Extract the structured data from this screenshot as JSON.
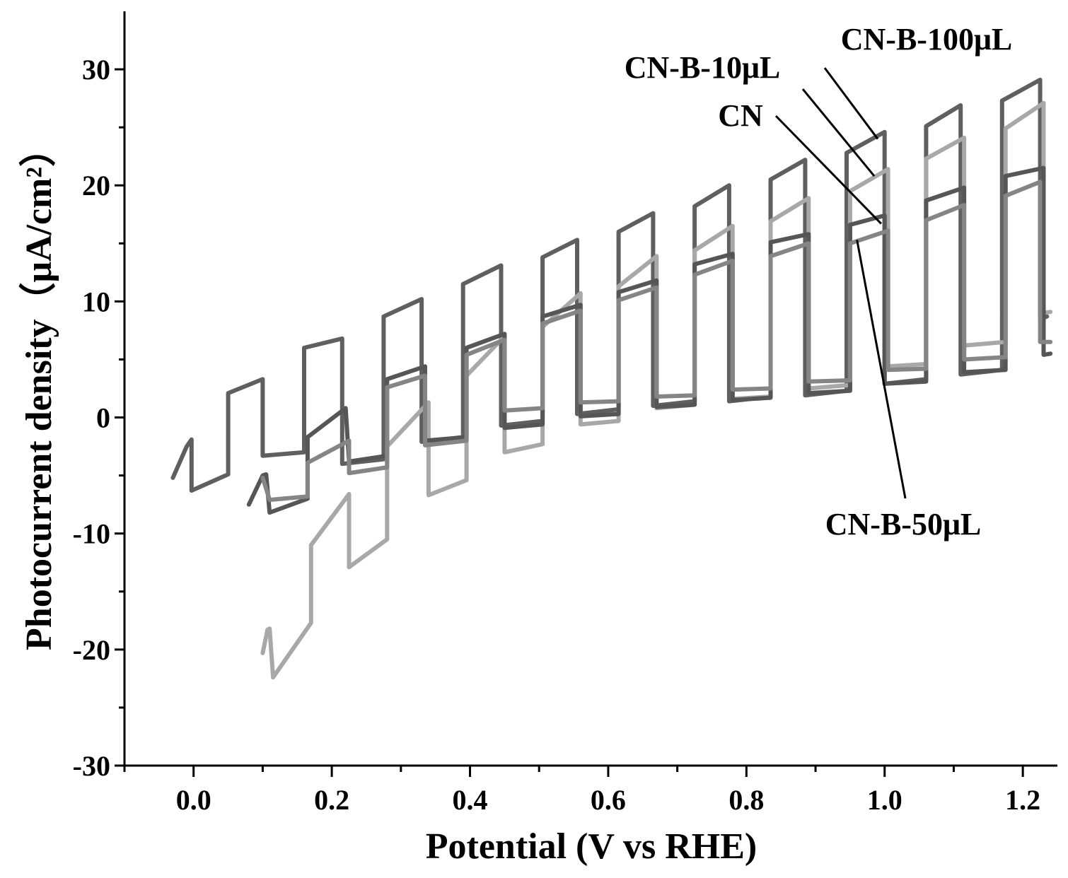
{
  "chart_data": {
    "type": "line",
    "xlabel": "Potential (V vs RHE)",
    "ylabel": "Photocurrent density（μA/cm²）",
    "xlim": [
      -0.1,
      1.25
    ],
    "ylim": [
      -30,
      35
    ],
    "xticks": [
      "0.0",
      "0.2",
      "0.4",
      "0.6",
      "0.8",
      "1.0",
      "1.2"
    ],
    "yticks": [
      "-30",
      "-20",
      "-10",
      "0",
      "10",
      "20",
      "30"
    ],
    "xtick_values": [
      0.0,
      0.2,
      0.4,
      0.6,
      0.8,
      1.0,
      1.2
    ],
    "ytick_values": [
      -30,
      -20,
      -10,
      0,
      10,
      20,
      30
    ],
    "grid": false,
    "legend": "inline labels with leader lines",
    "series": [
      {
        "name": "CN-B-100μL",
        "color": "#5f5f5f",
        "light_on_ends": [
          -0.005,
          0.1,
          0.215,
          0.33,
          0.445,
          0.555,
          0.665,
          0.775,
          0.885,
          1.0,
          1.11,
          1.225
        ],
        "dark_end": 1.235,
        "points": [
          [
            -0.03,
            -5.2
          ],
          [
            -0.01,
            -2.5
          ],
          [
            -0.003,
            -1.9
          ],
          [
            -0.003,
            -6.3
          ],
          [
            0.05,
            -4.9
          ],
          [
            0.05,
            2.1
          ],
          [
            0.1,
            3.3
          ],
          [
            0.1,
            -3.3
          ],
          [
            0.16,
            -3.0
          ],
          [
            0.16,
            6.0
          ],
          [
            0.215,
            6.8
          ],
          [
            0.215,
            -4.0
          ],
          [
            0.275,
            -3.6
          ],
          [
            0.275,
            8.7
          ],
          [
            0.33,
            10.2
          ],
          [
            0.33,
            -2.1
          ],
          [
            0.39,
            -1.7
          ],
          [
            0.39,
            11.5
          ],
          [
            0.445,
            13.1
          ],
          [
            0.445,
            -0.7
          ],
          [
            0.505,
            -0.3
          ],
          [
            0.505,
            13.8
          ],
          [
            0.555,
            15.3
          ],
          [
            0.555,
            0.3
          ],
          [
            0.615,
            0.7
          ],
          [
            0.615,
            16.0
          ],
          [
            0.665,
            17.6
          ],
          [
            0.665,
            1.0
          ],
          [
            0.725,
            1.4
          ],
          [
            0.725,
            18.2
          ],
          [
            0.775,
            20.0
          ],
          [
            0.775,
            1.4
          ],
          [
            0.835,
            1.8
          ],
          [
            0.835,
            20.5
          ],
          [
            0.885,
            22.2
          ],
          [
            0.885,
            1.9
          ],
          [
            0.945,
            2.3
          ],
          [
            0.945,
            22.8
          ],
          [
            1.0,
            24.6
          ],
          [
            1.0,
            2.9
          ],
          [
            1.06,
            3.3
          ],
          [
            1.06,
            25.1
          ],
          [
            1.11,
            26.9
          ],
          [
            1.11,
            3.7
          ],
          [
            1.17,
            4.1
          ],
          [
            1.17,
            27.3
          ],
          [
            1.225,
            29.1
          ],
          [
            1.225,
            8.5
          ],
          [
            1.235,
            8.7
          ]
        ]
      },
      {
        "name": "CN-B-10μL",
        "color": "#a8a8a8",
        "light_on_ends": [
          0.115,
          0.225,
          0.34,
          0.45,
          0.56,
          0.67,
          0.78,
          0.89,
          1.005,
          1.115,
          1.23
        ],
        "dark_end": 1.24,
        "points": [
          [
            0.1,
            -20.3
          ],
          [
            0.107,
            -18.3
          ],
          [
            0.11,
            -18.2
          ],
          [
            0.115,
            -22.4
          ],
          [
            0.17,
            -17.7
          ],
          [
            0.17,
            -11.0
          ],
          [
            0.225,
            -6.6
          ],
          [
            0.225,
            -12.9
          ],
          [
            0.28,
            -10.5
          ],
          [
            0.28,
            -2.5
          ],
          [
            0.34,
            1.3
          ],
          [
            0.34,
            -6.7
          ],
          [
            0.395,
            -5.4
          ],
          [
            0.395,
            3.6
          ],
          [
            0.45,
            7.0
          ],
          [
            0.45,
            -3.0
          ],
          [
            0.505,
            -2.3
          ],
          [
            0.505,
            7.8
          ],
          [
            0.56,
            10.7
          ],
          [
            0.56,
            -0.6
          ],
          [
            0.615,
            -0.3
          ],
          [
            0.615,
            11.3
          ],
          [
            0.67,
            13.9
          ],
          [
            0.67,
            0.8
          ],
          [
            0.725,
            1.1
          ],
          [
            0.725,
            14.4
          ],
          [
            0.78,
            16.5
          ],
          [
            0.78,
            1.6
          ],
          [
            0.835,
            1.8
          ],
          [
            0.835,
            16.9
          ],
          [
            0.89,
            18.9
          ],
          [
            0.89,
            2.5
          ],
          [
            0.95,
            2.8
          ],
          [
            0.95,
            19.5
          ],
          [
            1.005,
            21.4
          ],
          [
            1.005,
            4.4
          ],
          [
            1.06,
            4.6
          ],
          [
            1.06,
            22.3
          ],
          [
            1.115,
            24.1
          ],
          [
            1.115,
            6.2
          ],
          [
            1.175,
            6.5
          ],
          [
            1.175,
            24.9
          ],
          [
            1.23,
            27.1
          ],
          [
            1.23,
            9.0
          ],
          [
            1.24,
            9.1
          ]
        ]
      },
      {
        "name": "CN",
        "color": "#565656",
        "light_on_ends": [
          0.11,
          0.225,
          0.335,
          0.45,
          0.56,
          0.67,
          0.78,
          0.89,
          1.0,
          1.115,
          1.23
        ],
        "dark_end": 1.24,
        "points": [
          [
            0.08,
            -7.5
          ],
          [
            0.1,
            -5.0
          ],
          [
            0.105,
            -4.9
          ],
          [
            0.11,
            -8.2
          ],
          [
            0.165,
            -7.0
          ],
          [
            0.165,
            -1.7
          ],
          [
            0.22,
            0.8
          ],
          [
            0.225,
            -3.8
          ],
          [
            0.28,
            -3.3
          ],
          [
            0.28,
            3.3
          ],
          [
            0.335,
            4.4
          ],
          [
            0.335,
            -2.0
          ],
          [
            0.395,
            -1.7
          ],
          [
            0.395,
            6.0
          ],
          [
            0.45,
            7.2
          ],
          [
            0.45,
            -0.9
          ],
          [
            0.505,
            -0.6
          ],
          [
            0.505,
            8.7
          ],
          [
            0.56,
            9.7
          ],
          [
            0.56,
            0.1
          ],
          [
            0.615,
            0.3
          ],
          [
            0.615,
            10.8
          ],
          [
            0.67,
            11.8
          ],
          [
            0.67,
            0.9
          ],
          [
            0.725,
            1.1
          ],
          [
            0.725,
            13.2
          ],
          [
            0.78,
            14.1
          ],
          [
            0.78,
            1.5
          ],
          [
            0.835,
            1.7
          ],
          [
            0.835,
            15.1
          ],
          [
            0.89,
            15.8
          ],
          [
            0.89,
            2.1
          ],
          [
            0.95,
            2.3
          ],
          [
            0.95,
            16.6
          ],
          [
            1.0,
            17.4
          ],
          [
            1.0,
            2.9
          ],
          [
            1.06,
            3.1
          ],
          [
            1.06,
            18.7
          ],
          [
            1.115,
            19.8
          ],
          [
            1.115,
            3.9
          ],
          [
            1.175,
            4.1
          ],
          [
            1.175,
            20.8
          ],
          [
            1.23,
            21.5
          ],
          [
            1.23,
            5.4
          ],
          [
            1.24,
            5.5
          ]
        ]
      },
      {
        "name": "CN-B-50μL",
        "color": "#858585",
        "light_on_ends": [
          0.11,
          0.225,
          0.335,
          0.45,
          0.56,
          0.67,
          0.78,
          0.89,
          1.005,
          1.115,
          1.225
        ],
        "dark_end": 1.24,
        "points": [
          [
            0.1,
            -5.2
          ],
          [
            0.11,
            -7.1
          ],
          [
            0.165,
            -6.8
          ],
          [
            0.165,
            -3.9
          ],
          [
            0.225,
            -2.0
          ],
          [
            0.225,
            -4.8
          ],
          [
            0.28,
            -4.3
          ],
          [
            0.28,
            2.6
          ],
          [
            0.335,
            3.6
          ],
          [
            0.335,
            -2.4
          ],
          [
            0.395,
            -2.0
          ],
          [
            0.395,
            5.4
          ],
          [
            0.45,
            6.7
          ],
          [
            0.45,
            0.6
          ],
          [
            0.505,
            0.8
          ],
          [
            0.505,
            8.1
          ],
          [
            0.56,
            9.2
          ],
          [
            0.56,
            1.3
          ],
          [
            0.615,
            1.4
          ],
          [
            0.615,
            10.1
          ],
          [
            0.67,
            11.2
          ],
          [
            0.67,
            1.8
          ],
          [
            0.725,
            1.9
          ],
          [
            0.725,
            12.3
          ],
          [
            0.78,
            13.5
          ],
          [
            0.78,
            2.4
          ],
          [
            0.835,
            2.5
          ],
          [
            0.835,
            13.9
          ],
          [
            0.89,
            15.0
          ],
          [
            0.89,
            3.1
          ],
          [
            0.95,
            3.2
          ],
          [
            0.95,
            15.0
          ],
          [
            1.005,
            16.1
          ],
          [
            1.005,
            4.1
          ],
          [
            1.06,
            4.2
          ],
          [
            1.06,
            17.0
          ],
          [
            1.115,
            18.3
          ],
          [
            1.115,
            5.0
          ],
          [
            1.175,
            5.2
          ],
          [
            1.175,
            19.1
          ],
          [
            1.225,
            20.3
          ],
          [
            1.225,
            6.5
          ],
          [
            1.24,
            6.5
          ]
        ]
      }
    ],
    "annotations": [
      {
        "text": "CN-B-100μL",
        "target_series": "CN-B-100μL",
        "target": [
          0.99,
          24.0
        ]
      },
      {
        "text": "CN-B-10μL",
        "target_series": "CN-B-10μL",
        "target": [
          0.985,
          20.8
        ]
      },
      {
        "text": "CN",
        "target_series": "CN",
        "target": [
          0.995,
          16.7
        ]
      },
      {
        "text": "CN-B-50μL",
        "target_series": "CN-B-50μL",
        "target": [
          0.96,
          15.3
        ]
      }
    ]
  }
}
